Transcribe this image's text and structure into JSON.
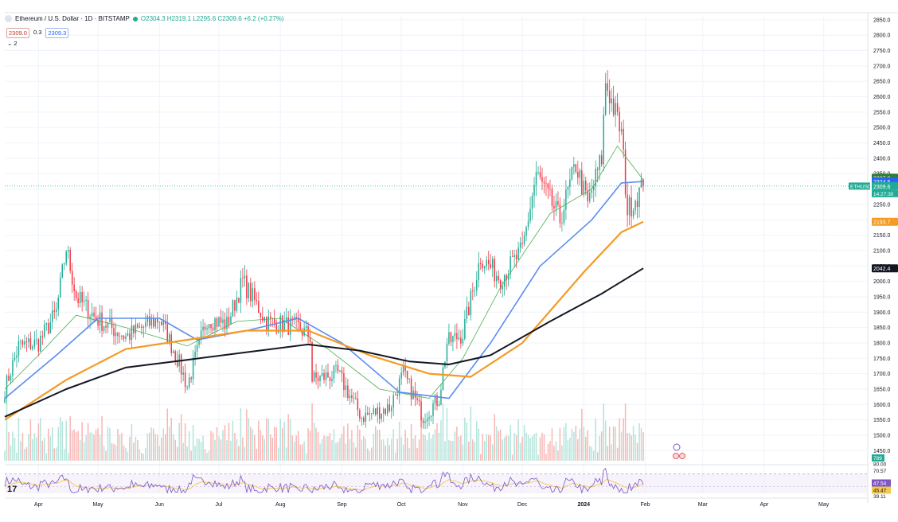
{
  "header": {
    "symbol": "Ethereum / U.S. Dollar · 1D · BITSTAMP",
    "ohlc": "O2304.3  H2319.1  L2295.6  C2309.6  +6.2 (+0.27%)",
    "badge_sell": "2309.0",
    "badge_spread": "0.3",
    "badge_buy": "2309.3",
    "layers": "⌄ 2"
  },
  "logo": "17",
  "colors": {
    "up": "#22ab94",
    "down": "#f23645",
    "sma20": "#4caf50",
    "sma50": "#5b8def",
    "sma100": "#f59a23",
    "sma200": "#131722",
    "rsi": "#7e57c2",
    "rsi_ma": "#f2c94c"
  },
  "chart_data": {
    "type": "candlestick",
    "y_axis": {
      "ylim": [
        1425,
        2860
      ],
      "ticks": [
        1450,
        1500,
        1550,
        1600,
        1650,
        1700,
        1750,
        1800,
        1850,
        1900,
        1950,
        2000,
        2050,
        2100,
        2150,
        2200,
        2250,
        2300,
        2350,
        2400,
        2450,
        2500,
        2550,
        2600,
        2650,
        2700,
        2750,
        2800,
        2850
      ],
      "tick_labels": [
        "1450.0",
        "1500.0",
        "1550.0",
        "1600.0",
        "1650.0",
        "1700.0",
        "1750.0",
        "1800.0",
        "1850.0",
        "1900.0",
        "1950.0",
        "2000.0",
        "2050.0",
        "2100.0",
        "2150.0",
        "2200.0",
        "2250.0",
        "2300.0",
        "2350.0",
        "2400.0",
        "2450.0",
        "2500.0",
        "2550.0",
        "2600.0",
        "2650.0",
        "2700.0",
        "2750.0",
        "2800.0",
        "2850.0"
      ]
    },
    "x_axis": {
      "tick_labels": [
        "Apr",
        "May",
        "Jun",
        "Jul",
        "Aug",
        "Sep",
        "Oct",
        "Nov",
        "Dec",
        "2024",
        "Feb",
        "Mar",
        "Apr",
        "May"
      ]
    },
    "close_anchors": [
      {
        "date": "2023-03-15",
        "close": 1650
      },
      {
        "date": "2023-03-22",
        "close": 1790
      },
      {
        "date": "2023-04-01",
        "close": 1800
      },
      {
        "date": "2023-04-10",
        "close": 1900
      },
      {
        "date": "2023-04-15",
        "close": 2110
      },
      {
        "date": "2023-04-20",
        "close": 1950
      },
      {
        "date": "2023-04-30",
        "close": 1880
      },
      {
        "date": "2023-05-15",
        "close": 1820
      },
      {
        "date": "2023-06-01",
        "close": 1880
      },
      {
        "date": "2023-06-10",
        "close": 1750
      },
      {
        "date": "2023-06-15",
        "close": 1660
      },
      {
        "date": "2023-06-25",
        "close": 1880
      },
      {
        "date": "2023-07-05",
        "close": 1860
      },
      {
        "date": "2023-07-13",
        "close": 2000
      },
      {
        "date": "2023-07-25",
        "close": 1870
      },
      {
        "date": "2023-08-10",
        "close": 1850
      },
      {
        "date": "2023-08-16",
        "close": 1820
      },
      {
        "date": "2023-08-17",
        "close": 1680
      },
      {
        "date": "2023-08-30",
        "close": 1700
      },
      {
        "date": "2023-09-11",
        "close": 1560
      },
      {
        "date": "2023-09-25",
        "close": 1590
      },
      {
        "date": "2023-10-02",
        "close": 1700
      },
      {
        "date": "2023-10-12",
        "close": 1560
      },
      {
        "date": "2023-10-20",
        "close": 1620
      },
      {
        "date": "2023-10-24",
        "close": 1800
      },
      {
        "date": "2023-11-01",
        "close": 1830
      },
      {
        "date": "2023-11-10",
        "close": 2080
      },
      {
        "date": "2023-11-20",
        "close": 2010
      },
      {
        "date": "2023-12-01",
        "close": 2100
      },
      {
        "date": "2023-12-08",
        "close": 2350
      },
      {
        "date": "2023-12-20",
        "close": 2200
      },
      {
        "date": "2023-12-28",
        "close": 2380
      },
      {
        "date": "2024-01-03",
        "close": 2250
      },
      {
        "date": "2024-01-10",
        "close": 2400
      },
      {
        "date": "2024-01-12",
        "close": 2650
      },
      {
        "date": "2024-01-20",
        "close": 2480
      },
      {
        "date": "2024-01-23",
        "close": 2230
      },
      {
        "date": "2024-01-28",
        "close": 2280
      },
      {
        "date": "2024-01-31",
        "close": 2309.6
      }
    ],
    "moving_averages": [
      {
        "name": "SMA 20",
        "color": "#4caf50",
        "points": [
          [
            "2023-03-15",
            1650
          ],
          [
            "2023-04-01",
            1760
          ],
          [
            "2023-04-20",
            1890
          ],
          [
            "2023-05-15",
            1850
          ],
          [
            "2023-06-15",
            1790
          ],
          [
            "2023-07-10",
            1870
          ],
          [
            "2023-08-01",
            1880
          ],
          [
            "2023-08-25",
            1780
          ],
          [
            "2023-09-20",
            1650
          ],
          [
            "2023-10-15",
            1620
          ],
          [
            "2023-11-01",
            1750
          ],
          [
            "2023-11-20",
            1980
          ],
          [
            "2023-12-15",
            2220
          ],
          [
            "2024-01-05",
            2300
          ],
          [
            "2024-01-18",
            2440
          ],
          [
            "2024-01-31",
            2330
          ]
        ]
      },
      {
        "name": "SMA 50",
        "color": "#5b8def",
        "points": [
          [
            "2023-03-15",
            1620
          ],
          [
            "2023-04-10",
            1760
          ],
          [
            "2023-05-01",
            1880
          ],
          [
            "2023-06-01",
            1880
          ],
          [
            "2023-06-20",
            1810
          ],
          [
            "2023-07-15",
            1840
          ],
          [
            "2023-08-10",
            1880
          ],
          [
            "2023-09-01",
            1800
          ],
          [
            "2023-09-30",
            1640
          ],
          [
            "2023-10-25",
            1620
          ],
          [
            "2023-11-15",
            1800
          ],
          [
            "2023-12-10",
            2050
          ],
          [
            "2024-01-05",
            2200
          ],
          [
            "2024-01-20",
            2320
          ],
          [
            "2024-01-31",
            2324.5
          ]
        ]
      },
      {
        "name": "SMA 100",
        "color": "#f59a23",
        "points": [
          [
            "2023-03-15",
            1550
          ],
          [
            "2023-04-15",
            1680
          ],
          [
            "2023-05-15",
            1780
          ],
          [
            "2023-06-15",
            1810
          ],
          [
            "2023-07-15",
            1840
          ],
          [
            "2023-08-15",
            1840
          ],
          [
            "2023-09-15",
            1760
          ],
          [
            "2023-10-15",
            1700
          ],
          [
            "2023-11-05",
            1690
          ],
          [
            "2023-12-01",
            1800
          ],
          [
            "2024-01-01",
            2030
          ],
          [
            "2024-01-20",
            2160
          ],
          [
            "2024-01-31",
            2193.7
          ]
        ]
      },
      {
        "name": "SMA 200",
        "color": "#131722",
        "points": [
          [
            "2023-03-15",
            1560
          ],
          [
            "2023-04-15",
            1650
          ],
          [
            "2023-05-15",
            1720
          ],
          [
            "2023-06-15",
            1745
          ],
          [
            "2023-07-15",
            1770
          ],
          [
            "2023-08-15",
            1795
          ],
          [
            "2023-09-10",
            1775
          ],
          [
            "2023-10-05",
            1740
          ],
          [
            "2023-10-25",
            1730
          ],
          [
            "2023-11-15",
            1760
          ],
          [
            "2023-12-15",
            1870
          ],
          [
            "2024-01-10",
            1960
          ],
          [
            "2024-01-31",
            2042.4
          ]
        ]
      }
    ],
    "price_labels": [
      {
        "label": "2337.0",
        "value": 2337.0,
        "color": "#2e7d32"
      },
      {
        "label": "2324.5",
        "value": 2324.5,
        "color": "#2962ff"
      },
      {
        "label": "2309.6",
        "value": 2309.6,
        "color": "#22ab94",
        "countdown": "14:27:30",
        "symbol": "ETHUSD"
      },
      {
        "label": "2193.7",
        "value": 2193.7,
        "color": "#f59a23"
      },
      {
        "label": "2042.4",
        "value": 2042.4,
        "color": "#131722"
      }
    ],
    "volume_label": "789",
    "rsi": {
      "ylim": [
        39.11,
        79.5
      ],
      "tick_labels": [
        "80.00",
        "70.57",
        "47.54",
        "45.47",
        "39.11"
      ],
      "values": [
        {
          "label": "47.54",
          "value": 47.54,
          "color": "#7e57c2"
        },
        {
          "label": "45.47",
          "value": 45.47,
          "color": "#f2c94c"
        }
      ]
    }
  }
}
